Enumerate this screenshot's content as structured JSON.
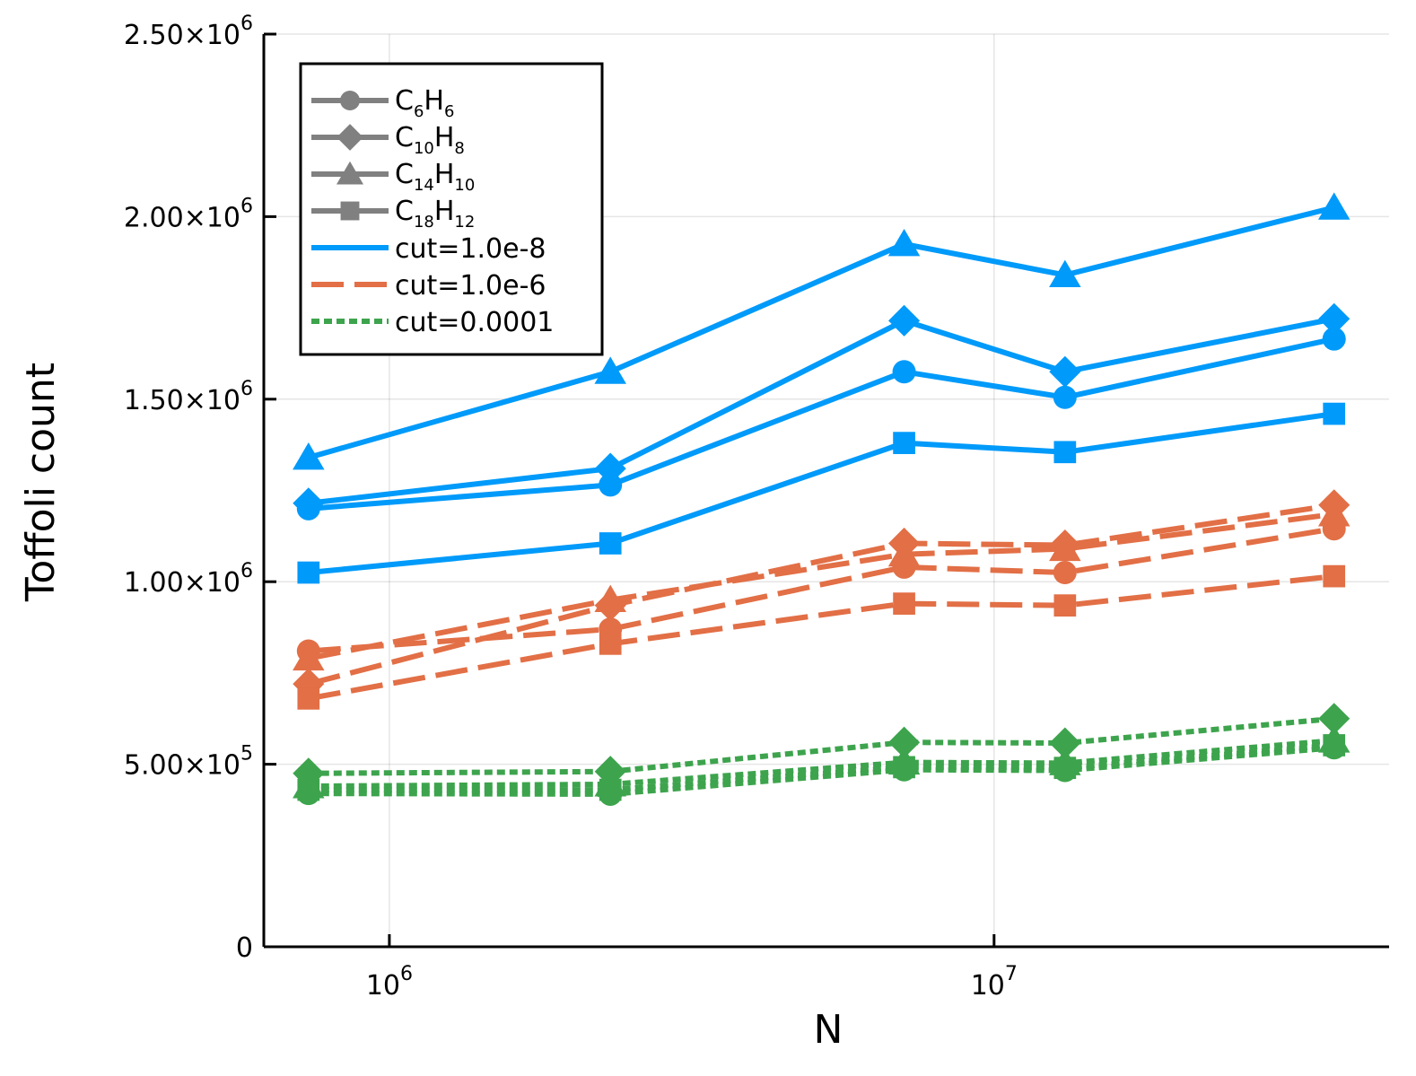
{
  "chart_data": {
    "type": "line",
    "title": "",
    "xlabel": "N",
    "ylabel": "Toffoli count",
    "xscale": "log",
    "xlim": [
      620000,
      45000000
    ],
    "ylim": [
      0,
      2500000
    ],
    "grid": true,
    "legend_position": "top-left",
    "x": [
      735000,
      2320000,
      7100000,
      13100000,
      36500000
    ],
    "x_ticks": [
      {
        "value": 1000000,
        "base": "10",
        "exp": "6"
      },
      {
        "value": 10000000,
        "base": "10",
        "exp": "7"
      }
    ],
    "y_ticks": [
      {
        "value": 0,
        "label": "0"
      },
      {
        "value": 500000,
        "label": "5.00×10",
        "exp": "5"
      },
      {
        "value": 1000000,
        "label": "1.00×10",
        "exp": "6"
      },
      {
        "value": 1500000,
        "label": "1.50×10",
        "exp": "6"
      },
      {
        "value": 2000000,
        "label": "2.00×10",
        "exp": "6"
      },
      {
        "value": 2500000,
        "label": "2.50×10",
        "exp": "6"
      }
    ],
    "molecules": [
      {
        "id": "c6h6",
        "marker": "circle",
        "parts": [
          [
            "C",
            ""
          ],
          [
            "6",
            "sub"
          ],
          [
            "H",
            ""
          ],
          [
            "6",
            "sub"
          ]
        ]
      },
      {
        "id": "c10h8",
        "marker": "diamond",
        "parts": [
          [
            "C",
            ""
          ],
          [
            "10",
            "sub"
          ],
          [
            "H",
            ""
          ],
          [
            "8",
            "sub"
          ]
        ]
      },
      {
        "id": "c14h10",
        "marker": "triangle",
        "parts": [
          [
            "C",
            ""
          ],
          [
            "14",
            "sub"
          ],
          [
            "H",
            ""
          ],
          [
            "10",
            "sub"
          ]
        ]
      },
      {
        "id": "c18h12",
        "marker": "square",
        "parts": [
          [
            "C",
            ""
          ],
          [
            "18",
            "sub"
          ],
          [
            "H",
            ""
          ],
          [
            "12",
            "sub"
          ]
        ]
      }
    ],
    "cutoffs": [
      {
        "label": "cut=1.0e-8",
        "color": "#009AFA",
        "dash": "solid"
      },
      {
        "label": "cut=1.0e-6",
        "color": "#E26F46",
        "dash": "dashed"
      },
      {
        "label": "cut=0.0001",
        "color": "#3DA44D",
        "dash": "dotted"
      }
    ],
    "series": [
      {
        "name": "C6H6 cut=1.0e-8",
        "molecule": 0,
        "cutoff": 0,
        "values": [
          1200000,
          1265000,
          1575000,
          1505000,
          1665000
        ]
      },
      {
        "name": "C10H8 cut=1.0e-8",
        "molecule": 1,
        "cutoff": 0,
        "values": [
          1215000,
          1310000,
          1715000,
          1575000,
          1720000
        ]
      },
      {
        "name": "C14H10 cut=1.0e-8",
        "molecule": 2,
        "cutoff": 0,
        "values": [
          1340000,
          1575000,
          1925000,
          1840000,
          2025000
        ]
      },
      {
        "name": "C18H12 cut=1.0e-8",
        "molecule": 3,
        "cutoff": 0,
        "values": [
          1025000,
          1105000,
          1380000,
          1355000,
          1460000
        ]
      },
      {
        "name": "C6H6 cut=1.0e-6",
        "molecule": 0,
        "cutoff": 1,
        "values": [
          810000,
          870000,
          1040000,
          1025000,
          1145000
        ]
      },
      {
        "name": "C10H8 cut=1.0e-6",
        "molecule": 1,
        "cutoff": 1,
        "values": [
          720000,
          935000,
          1105000,
          1100000,
          1210000
        ]
      },
      {
        "name": "C14H10 cut=1.0e-6",
        "molecule": 2,
        "cutoff": 1,
        "values": [
          790000,
          950000,
          1075000,
          1090000,
          1185000
        ]
      },
      {
        "name": "C18H12 cut=1.0e-6",
        "molecule": 3,
        "cutoff": 1,
        "values": [
          680000,
          830000,
          940000,
          935000,
          1015000
        ]
      },
      {
        "name": "C6H6 cut=0.0001",
        "molecule": 0,
        "cutoff": 2,
        "values": [
          420000,
          418000,
          485000,
          483000,
          545000
        ]
      },
      {
        "name": "C10H8 cut=0.0001",
        "molecule": 1,
        "cutoff": 2,
        "values": [
          475000,
          480000,
          560000,
          558000,
          625000
        ]
      },
      {
        "name": "C14H10 cut=0.0001",
        "molecule": 2,
        "cutoff": 2,
        "values": [
          440000,
          445000,
          505000,
          503000,
          565000
        ]
      },
      {
        "name": "C18H12 cut=0.0001",
        "molecule": 3,
        "cutoff": 2,
        "values": [
          430000,
          430000,
          492000,
          490000,
          552000
        ]
      }
    ]
  },
  "legend": {
    "marker_color": "#808080"
  }
}
